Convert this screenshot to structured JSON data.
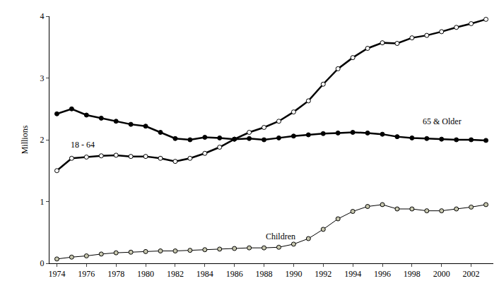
{
  "chart_data": {
    "type": "line",
    "y_label": "Millions",
    "x": [
      1974,
      1975,
      1976,
      1977,
      1978,
      1979,
      1980,
      1981,
      1982,
      1983,
      1984,
      1985,
      1986,
      1987,
      1988,
      1989,
      1990,
      1991,
      1992,
      1993,
      1994,
      1995,
      1996,
      1997,
      1998,
      1999,
      2000,
      2001,
      2002,
      2003
    ],
    "series": [
      {
        "name": "18 - 64",
        "color": "#ffffff",
        "marker": "circle",
        "values": [
          1.5,
          1.7,
          1.72,
          1.74,
          1.75,
          1.73,
          1.73,
          1.7,
          1.65,
          1.7,
          1.78,
          1.88,
          2.01,
          2.12,
          2.2,
          2.3,
          2.45,
          2.63,
          2.9,
          3.15,
          3.33,
          3.48,
          3.57,
          3.56,
          3.65,
          3.69,
          3.75,
          3.82,
          3.88,
          3.95
        ]
      },
      {
        "name": "65 & Older",
        "color": "#000000",
        "marker": "circle",
        "values": [
          2.42,
          2.5,
          2.4,
          2.35,
          2.3,
          2.25,
          2.22,
          2.12,
          2.02,
          2.0,
          2.04,
          2.03,
          2.01,
          2.02,
          2.0,
          2.03,
          2.06,
          2.08,
          2.1,
          2.11,
          2.12,
          2.11,
          2.09,
          2.05,
          2.03,
          2.02,
          2.01,
          2.0,
          2.0,
          1.99
        ]
      },
      {
        "name": "Children",
        "color": "#c8c8b0",
        "marker": "circle",
        "values": [
          0.07,
          0.1,
          0.12,
          0.15,
          0.17,
          0.18,
          0.19,
          0.2,
          0.2,
          0.21,
          0.22,
          0.23,
          0.24,
          0.25,
          0.25,
          0.26,
          0.31,
          0.4,
          0.55,
          0.72,
          0.84,
          0.92,
          0.95,
          0.88,
          0.88,
          0.85,
          0.85,
          0.88,
          0.91,
          0.95
        ]
      }
    ],
    "xlim": [
      1973.5,
      2003.5
    ],
    "xticks": [
      1974,
      1976,
      1978,
      1980,
      1982,
      1984,
      1986,
      1988,
      1990,
      1992,
      1994,
      1996,
      1998,
      2000,
      2002
    ],
    "ylim": [
      0,
      4
    ],
    "yticks": [
      0,
      1,
      2,
      3,
      4
    ],
    "grid": false
  }
}
